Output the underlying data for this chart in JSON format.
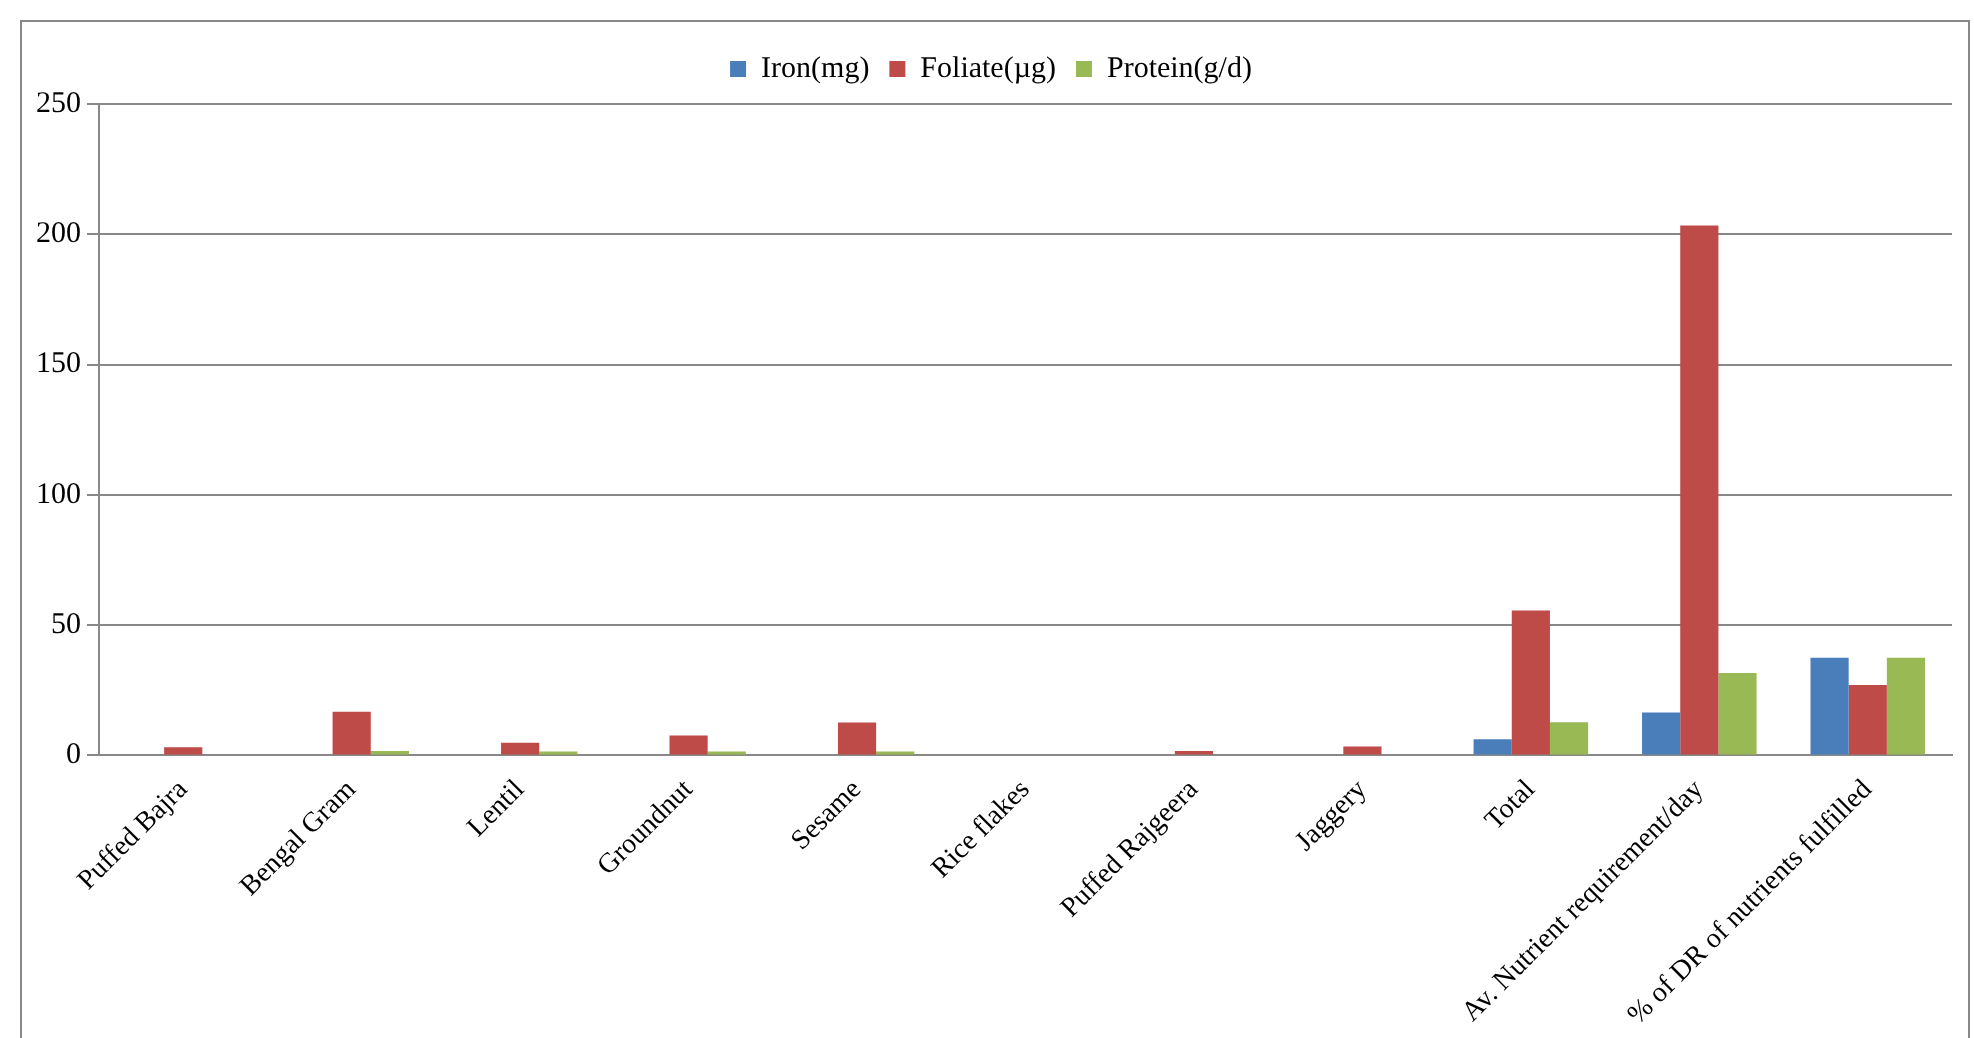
{
  "chart_data": {
    "type": "bar",
    "categories": [
      "Puffed Bajra",
      "Bengal Gram",
      "Lentil",
      "Groundnut",
      "Sesame",
      "Rice flakes",
      "Puffed Rajgeera",
      "Jaggery",
      "Total",
      "Av. Nutrient requirement/day",
      "% of DR of nutrients fulfilled"
    ],
    "series": [
      {
        "name": "Iron(mg)",
        "color": "#4a7ebb",
        "values": [
          0,
          0,
          0,
          0,
          0,
          0,
          0,
          0,
          6.2,
          16.5,
          37.5
        ]
      },
      {
        "name": "Foliate(µg)",
        "color": "#be4b48",
        "values": [
          3.1,
          16.8,
          4.9,
          7.7,
          12.6,
          0,
          1.7,
          3.4,
          55.6,
          203.4,
          27
        ]
      },
      {
        "name": "Protein(g/d)",
        "color": "#98b954",
        "values": [
          0,
          1.7,
          1.5,
          1.5,
          1.5,
          0,
          0,
          0,
          12.7,
          31.6,
          37.5
        ]
      }
    ],
    "ylim": [
      0,
      250
    ],
    "yticks": [
      0,
      50,
      100,
      150,
      200,
      250
    ],
    "grid": "y",
    "legend": "top"
  }
}
